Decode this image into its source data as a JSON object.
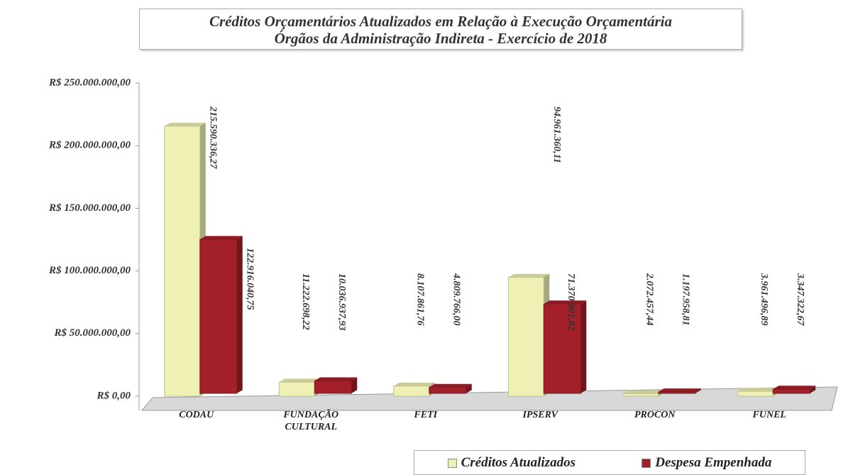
{
  "chart_data": {
    "type": "bar",
    "title": "Créditos Orçamentários  Atualizados em Relação à Execução Orçamentária",
    "subtitle": "Órgãos da Administração Indireta - Exercício de 2018",
    "categories": [
      "CODAU",
      "FUNDAÇÃO CULTURAL",
      "FETI",
      "IPSERV",
      "PROCON",
      "FUNEL"
    ],
    "series": [
      {
        "name": "Créditos Atualizados",
        "color": "#eef0b4",
        "values": [
          215590336.27,
          11222698.22,
          8107861.76,
          94961360.11,
          2072457.44,
          3961496.89
        ],
        "value_labels": [
          "215.590.336,27",
          "11.222.698,22",
          "8.107.861,76",
          "94.961.360,11",
          "2.072.457,44",
          "3.961.496,89"
        ]
      },
      {
        "name": "Despesa Empenhada",
        "color": "#a3202a",
        "values": [
          122916040.75,
          10036937.93,
          4809766.0,
          71370001.82,
          1197958.81,
          3347322.67
        ],
        "value_labels": [
          "122.916.040,75",
          "10.036.937,93",
          "4.809.766,00",
          "71.370.001,82",
          "1.197.958,81",
          "3.347.322,67"
        ]
      }
    ],
    "ylim": [
      0,
      250000000
    ],
    "yticks": [
      {
        "value": 0,
        "label": "R$ 0,00"
      },
      {
        "value": 50000000,
        "label": "R$ 50.000.000,00"
      },
      {
        "value": 100000000,
        "label": "R$ 100.000.000,00"
      },
      {
        "value": 150000000,
        "label": "R$ 150.000.000,00"
      },
      {
        "value": 200000000,
        "label": "R$ 200.000.000,00"
      },
      {
        "value": 250000000,
        "label": "R$ 250.000.000,00"
      }
    ],
    "legend": "bottom-right"
  }
}
